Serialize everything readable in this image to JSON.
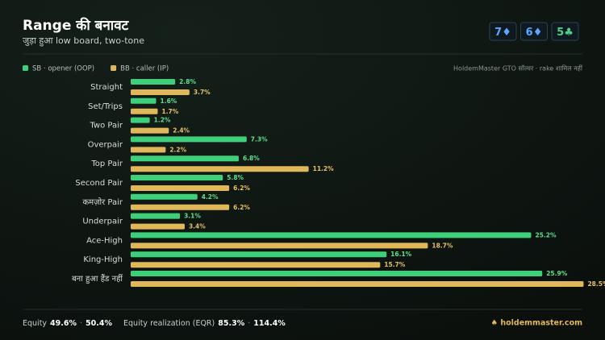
{
  "header": {
    "title": "Range की बनावट",
    "subtitle": "जुड़ा हुआ low board, two-tone"
  },
  "cards": [
    {
      "rank": "7",
      "suit": "♦",
      "color": "#5aa8ff"
    },
    {
      "rank": "6",
      "suit": "♦",
      "color": "#5aa8ff"
    },
    {
      "rank": "5",
      "suit": "♣",
      "color": "#4fd08a"
    }
  ],
  "note": "HoldemMaster GTO सॉल्वर · rake शामिल नहीं",
  "chart_data": {
    "type": "hbar",
    "categories": [
      "Straight",
      "Set/Trips",
      "Two Pair",
      "Overpair",
      "Top Pair",
      "Second Pair",
      "कमज़ोर Pair",
      "Underpair",
      "Ace-High",
      "King-High",
      "बना हुआ हैंड नहीं"
    ],
    "series": [
      {
        "name": "SB · opener (OOP)",
        "color": "#3ecf7a",
        "values": [
          2.8,
          1.6,
          1.2,
          7.3,
          6.8,
          5.8,
          4.2,
          3.1,
          25.2,
          16.1,
          25.9
        ],
        "value_labels": [
          "2.8%",
          "1.6%",
          "1.2%",
          "7.3%",
          "6.8%",
          "5.8%",
          "4.2%",
          "3.1%",
          "25.2%",
          "16.1%",
          "25.9%"
        ]
      },
      {
        "name": "BB · caller (IP)",
        "color": "#e0b85a",
        "values": [
          3.7,
          1.7,
          2.4,
          2.2,
          11.2,
          6.2,
          6.2,
          3.4,
          18.7,
          15.7,
          28.5
        ],
        "value_labels": [
          "3.7%",
          "1.7%",
          "2.4%",
          "2.2%",
          "11.2%",
          "6.2%",
          "6.2%",
          "3.4%",
          "18.7%",
          "15.7%",
          "28.5%"
        ]
      }
    ]
  },
  "footer": {
    "separator": "·",
    "items": [
      {
        "label": "Equity",
        "values": [
          "49.6%",
          "50.4%"
        ]
      },
      {
        "label": "Equity realization (EQR)",
        "values": [
          "85.3%",
          "114.4%"
        ]
      }
    ],
    "brand": "♠ holdemmaster.com"
  }
}
